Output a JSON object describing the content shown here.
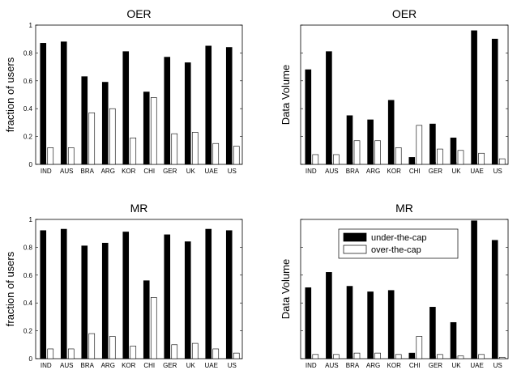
{
  "chart_data": [
    {
      "type": "bar",
      "title": "OER",
      "ylabel": "fraction of users",
      "ylim": [
        0,
        1
      ],
      "yticks": [
        "0",
        "0.2",
        "0.4",
        "0.6",
        "0.8",
        "1"
      ],
      "categories": [
        "IND",
        "AUS",
        "BRA",
        "ARG",
        "KOR",
        "CHI",
        "GER",
        "UK",
        "UAE",
        "US"
      ],
      "series": [
        {
          "name": "under-the-cap",
          "color": "#000000",
          "values": [
            0.87,
            0.88,
            0.63,
            0.59,
            0.81,
            0.52,
            0.77,
            0.73,
            0.85,
            0.84
          ]
        },
        {
          "name": "over-the-cap",
          "color": "#ffffff",
          "values": [
            0.12,
            0.12,
            0.37,
            0.4,
            0.19,
            0.48,
            0.22,
            0.23,
            0.15,
            0.13
          ]
        }
      ],
      "grid": false
    },
    {
      "type": "bar",
      "title": "OER",
      "ylabel": "Data Volume",
      "ylim": [
        0,
        1
      ],
      "yticks": [],
      "categories": [
        "IND",
        "AUS",
        "BRA",
        "ARG",
        "KOR",
        "CHI",
        "GER",
        "UK",
        "UAE",
        "US"
      ],
      "series": [
        {
          "name": "under-the-cap",
          "color": "#000000",
          "values": [
            0.68,
            0.81,
            0.35,
            0.32,
            0.46,
            0.05,
            0.29,
            0.19,
            0.96,
            0.9
          ]
        },
        {
          "name": "over-the-cap",
          "color": "#ffffff",
          "values": [
            0.07,
            0.07,
            0.17,
            0.17,
            0.12,
            0.28,
            0.11,
            0.1,
            0.08,
            0.04
          ]
        }
      ],
      "grid": false
    },
    {
      "type": "bar",
      "title": "MR",
      "ylabel": "fraction of users",
      "ylim": [
        0,
        1
      ],
      "yticks": [
        "0",
        "0.2",
        "0.4",
        "0.6",
        "0.8",
        "1"
      ],
      "categories": [
        "IND",
        "AUS",
        "BRA",
        "ARG",
        "KOR",
        "CHI",
        "GER",
        "UK",
        "UAE",
        "US"
      ],
      "series": [
        {
          "name": "under-the-cap",
          "color": "#000000",
          "values": [
            0.92,
            0.93,
            0.81,
            0.83,
            0.91,
            0.56,
            0.89,
            0.84,
            0.93,
            0.92
          ]
        },
        {
          "name": "over-the-cap",
          "color": "#ffffff",
          "values": [
            0.07,
            0.07,
            0.18,
            0.16,
            0.09,
            0.44,
            0.1,
            0.11,
            0.07,
            0.04
          ]
        }
      ],
      "grid": false
    },
    {
      "type": "bar",
      "title": "MR",
      "ylabel": "Data Volume",
      "ylim": [
        0,
        1
      ],
      "yticks": [],
      "categories": [
        "IND",
        "AUS",
        "BRA",
        "ARG",
        "KOR",
        "CHI",
        "GER",
        "UK",
        "UAE",
        "US"
      ],
      "series": [
        {
          "name": "under-the-cap",
          "color": "#000000",
          "values": [
            0.51,
            0.62,
            0.52,
            0.48,
            0.49,
            0.04,
            0.37,
            0.26,
            0.99,
            0.85
          ]
        },
        {
          "name": "over-the-cap",
          "color": "#ffffff",
          "values": [
            0.03,
            0.03,
            0.04,
            0.04,
            0.03,
            0.16,
            0.03,
            0.02,
            0.03,
            0.01
          ]
        }
      ],
      "legend": {
        "position": "top-right",
        "entries": [
          "under-the-cap",
          "over-the-cap"
        ]
      },
      "grid": false
    }
  ]
}
